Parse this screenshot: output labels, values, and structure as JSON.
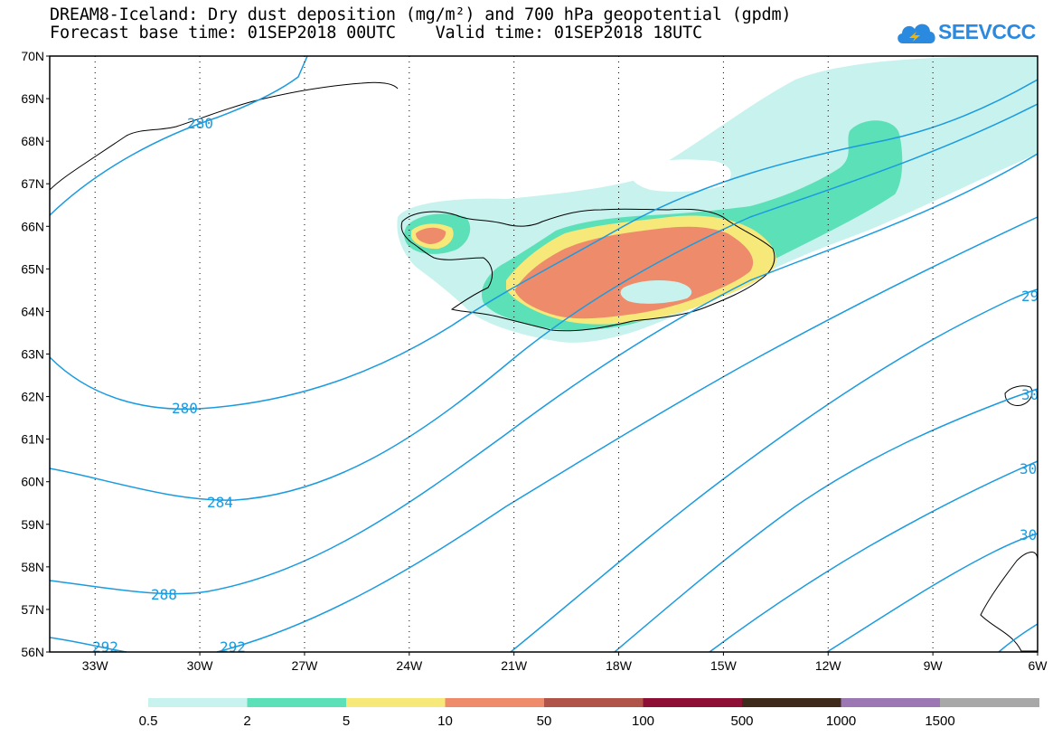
{
  "title_line1": "DREAM8-Iceland: Dry dust deposition (mg/m²) and 700 hPa geopotential (gpdm)",
  "title_line2": "Forecast base time: 01SEP2018 00UTC    Valid time: 01SEP2018 18UTC",
  "logo_text": "SEEVCCC",
  "logo_icon": "cloud-icon",
  "colors": {
    "contour": "#1a9be0",
    "land": "#ffffff",
    "ocean": "#ffffff"
  },
  "axes": {
    "lon_ticks": [
      "33W",
      "30W",
      "27W",
      "24W",
      "21W",
      "18W",
      "15W",
      "12W",
      "9W",
      "6W"
    ],
    "lat_ticks": [
      "70N",
      "69N",
      "68N",
      "67N",
      "66N",
      "65N",
      "64N",
      "63N",
      "62N",
      "61N",
      "60N",
      "59N",
      "58N",
      "57N",
      "56N"
    ],
    "lon_range": [
      -34.3,
      -6
    ],
    "lat_range": [
      56,
      70
    ],
    "grid": "dotted"
  },
  "legend": {
    "labels": [
      "0.5",
      "2",
      "5",
      "10",
      "50",
      "100",
      "500",
      "1000",
      "1500"
    ],
    "colors": [
      "#c8f2ee",
      "#5ce0b8",
      "#f7e87a",
      "#ee8b6b",
      "#b0544a",
      "#8e0f36",
      "#3d2a1a",
      "#9b77b4",
      "#a8a8a8"
    ]
  },
  "contours": {
    "labels": [
      "280",
      "280",
      "284",
      "288",
      "292",
      "292",
      "29",
      "30",
      "30",
      "30"
    ]
  }
}
